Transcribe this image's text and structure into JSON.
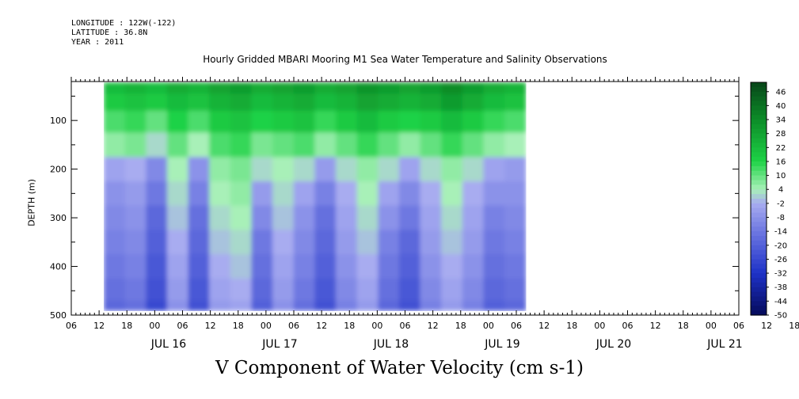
{
  "metadata": {
    "longitude": "LONGITUDE : 122W(-122)",
    "latitude": "LATITUDE : 36.8N",
    "year": "YEAR : 2011"
  },
  "chart_data": {
    "type": "heatmap",
    "title": "Hourly Gridded MBARI Mooring M1 Sea Water Temperature and Salinity Observations",
    "xlabel": "V Component of Water Velocity (cm s-1)",
    "ylabel": "DEPTH (m)",
    "x_hour_ticks": [
      "06",
      "12",
      "18",
      "00",
      "06",
      "12",
      "18",
      "00",
      "06",
      "12",
      "18",
      "00",
      "06",
      "12",
      "18",
      "00",
      "06",
      "12",
      "18",
      "00",
      "06",
      "12",
      "18",
      "00",
      "06",
      "12",
      "18"
    ],
    "x_day_labels": [
      "JUL 16",
      "JUL 17",
      "JUL 18",
      "JUL 19",
      "JUL 20",
      "JUL 21"
    ],
    "y_ticks": [
      100,
      200,
      300,
      400,
      500
    ],
    "ylim": [
      500,
      20
    ],
    "xlim_hours_from_jul16_00": [
      -18,
      126
    ],
    "data_extent_hours_from_jul16_00": [
      -11,
      80
    ],
    "colorbar_ticks": [
      46,
      40,
      34,
      28,
      22,
      16,
      10,
      4,
      -2,
      -8,
      -14,
      -20,
      -26,
      -32,
      -38,
      -44,
      -50
    ],
    "colorbar_range": [
      -50,
      50
    ],
    "colors": {
      "positive_strong": "#0b5a1e",
      "positive": "#14c841",
      "neutral_pos": "#a8f0b8",
      "neutral_neg": "#a8acf0",
      "negative": "#2436c8",
      "negative_strong": "#050a5a"
    },
    "grid": false,
    "depth_bands": [
      {
        "depth": 30,
        "values": [
          22,
          24,
          22,
          26,
          24,
          28,
          30,
          26,
          28,
          30,
          26,
          28,
          32,
          30,
          28,
          30,
          34,
          30,
          26,
          24
        ]
      },
      {
        "depth": 60,
        "values": [
          18,
          20,
          18,
          22,
          20,
          24,
          26,
          22,
          24,
          26,
          22,
          24,
          28,
          26,
          24,
          26,
          30,
          26,
          22,
          20
        ]
      },
      {
        "depth": 100,
        "values": [
          12,
          14,
          10,
          16,
          12,
          18,
          20,
          16,
          18,
          20,
          14,
          18,
          22,
          18,
          16,
          18,
          22,
          18,
          14,
          12
        ]
      },
      {
        "depth": 150,
        "values": [
          6,
          8,
          2,
          10,
          4,
          12,
          14,
          8,
          10,
          12,
          6,
          10,
          14,
          10,
          6,
          10,
          14,
          10,
          6,
          4
        ]
      },
      {
        "depth": 200,
        "values": [
          -4,
          -2,
          -10,
          4,
          -8,
          6,
          8,
          2,
          4,
          2,
          -6,
          2,
          6,
          2,
          -4,
          2,
          6,
          2,
          -4,
          -6
        ]
      },
      {
        "depth": 250,
        "values": [
          -8,
          -6,
          -14,
          2,
          -12,
          4,
          6,
          -6,
          2,
          -4,
          -12,
          -2,
          4,
          -4,
          -10,
          -2,
          4,
          -2,
          -8,
          -8
        ]
      },
      {
        "depth": 300,
        "values": [
          -10,
          -8,
          -18,
          0,
          -16,
          2,
          4,
          -10,
          0,
          -8,
          -16,
          -4,
          2,
          -8,
          -14,
          -4,
          2,
          -4,
          -12,
          -10
        ]
      },
      {
        "depth": 350,
        "values": [
          -12,
          -10,
          -20,
          -2,
          -18,
          0,
          2,
          -14,
          -2,
          -10,
          -18,
          -6,
          0,
          -12,
          -18,
          -6,
          0,
          -6,
          -14,
          -12
        ]
      },
      {
        "depth": 400,
        "values": [
          -14,
          -12,
          -22,
          -4,
          -20,
          -2,
          0,
          -16,
          -4,
          -12,
          -20,
          -8,
          -2,
          -14,
          -20,
          -8,
          -2,
          -8,
          -16,
          -14
        ]
      },
      {
        "depth": 450,
        "values": [
          -16,
          -14,
          -24,
          -6,
          -22,
          -4,
          -2,
          -18,
          -6,
          -14,
          -22,
          -10,
          -4,
          -16,
          -22,
          -10,
          -4,
          -10,
          -18,
          -16
        ]
      },
      {
        "depth": 490,
        "values": [
          -18,
          -16,
          -26,
          -8,
          -24,
          -6,
          -4,
          -20,
          -8,
          -16,
          -24,
          -12,
          -6,
          -18,
          -24,
          -12,
          -6,
          -12,
          -20,
          -18
        ]
      }
    ]
  }
}
